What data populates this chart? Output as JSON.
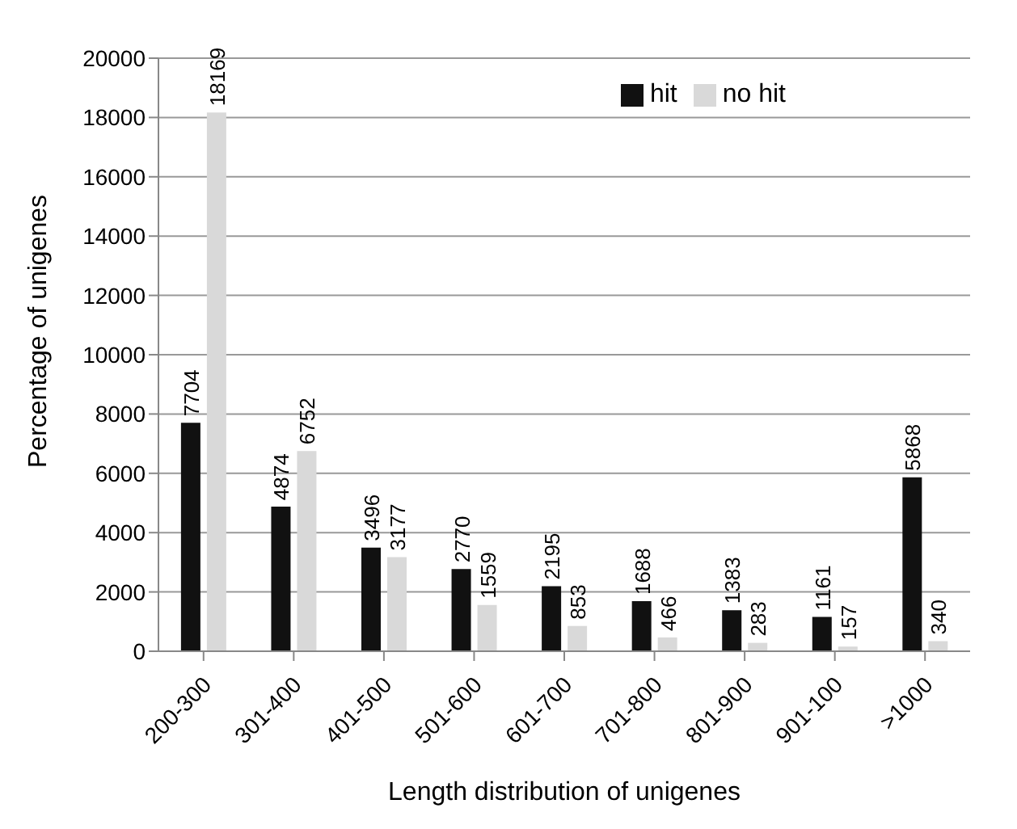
{
  "chart_data": {
    "type": "bar",
    "xlabel": "Length distribution of unigenes",
    "ylabel": "Percentage of unigenes",
    "categories": [
      "200-300",
      "301-400",
      "401-500",
      "501-600",
      "601-700",
      "701-800",
      "801-900",
      "901-100",
      ">1000"
    ],
    "series": [
      {
        "name": "hit",
        "color": "#111111",
        "values": [
          7704,
          4874,
          3496,
          2770,
          2195,
          1688,
          1383,
          1161,
          5868
        ]
      },
      {
        "name": "no hit",
        "color": "#d9d9d9",
        "values": [
          18169,
          6752,
          3177,
          1559,
          853,
          466,
          283,
          157,
          340
        ]
      }
    ],
    "ylim": [
      0,
      20000
    ],
    "yticks": [
      0,
      2000,
      4000,
      6000,
      8000,
      10000,
      12000,
      14000,
      16000,
      18000,
      20000
    ],
    "grid": "y",
    "legend": "top right",
    "data_labels": true
  }
}
